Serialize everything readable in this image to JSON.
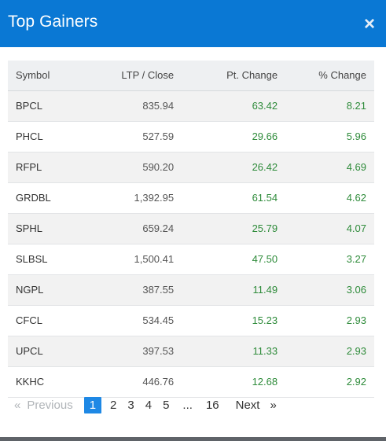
{
  "modal": {
    "title": "Top Gainers",
    "close_symbol": "×"
  },
  "table": {
    "headers": [
      "Symbol",
      "LTP / Close",
      "Pt. Change",
      "% Change"
    ],
    "rows": [
      [
        "BPCL",
        "835.94",
        "63.42",
        "8.21"
      ],
      [
        "PHCL",
        "527.59",
        "29.66",
        "5.96"
      ],
      [
        "RFPL",
        "590.20",
        "26.42",
        "4.69"
      ],
      [
        "GRDBL",
        "1,392.95",
        "61.54",
        "4.62"
      ],
      [
        "SPHL",
        "659.24",
        "25.79",
        "4.07"
      ],
      [
        "SLBSL",
        "1,500.41",
        "47.50",
        "3.27"
      ],
      [
        "NGPL",
        "387.55",
        "11.49",
        "3.06"
      ],
      [
        "CFCL",
        "534.45",
        "15.23",
        "2.93"
      ],
      [
        "UPCL",
        "397.53",
        "11.33",
        "2.93"
      ],
      [
        "KKHC",
        "446.76",
        "12.68",
        "2.92"
      ]
    ]
  },
  "pagination": {
    "prev_arrow": "«",
    "previous": "Previous",
    "pages": [
      "1",
      "2",
      "3",
      "4",
      "5"
    ],
    "ellipsis": "...",
    "last": "16",
    "next": "Next",
    "next_arrow": "»",
    "current": "1"
  },
  "colors": {
    "header_bg": "#0a78d4",
    "positive": "#2e8b3a",
    "active_page": "#1e88e5"
  }
}
